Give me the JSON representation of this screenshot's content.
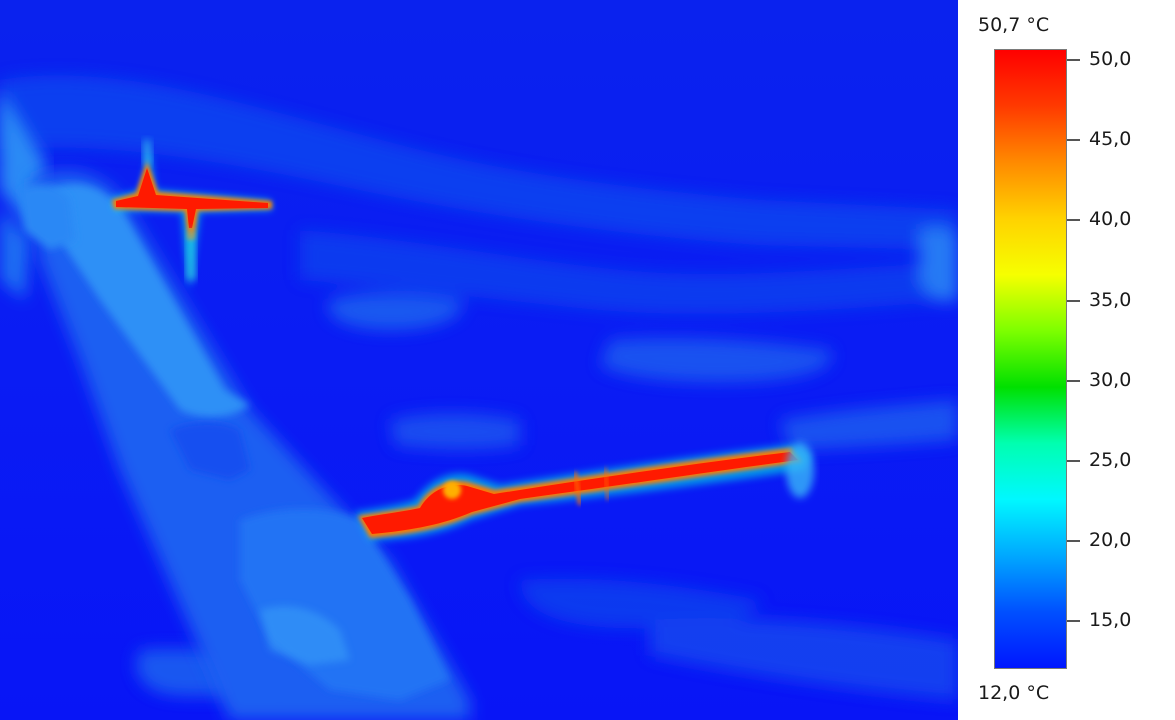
{
  "thermal_image": {
    "description_icon": "thermal-camera-image"
  },
  "scale": {
    "max_label": "50,7 °C",
    "min_label": "12,0 °C",
    "min_value": 12.0,
    "max_value": 50.7,
    "ticks": [
      {
        "value": 50.0,
        "label": "50,0"
      },
      {
        "value": 45.0,
        "label": "45,0"
      },
      {
        "value": 40.0,
        "label": "40,0"
      },
      {
        "value": 35.0,
        "label": "35,0"
      },
      {
        "value": 30.0,
        "label": "30,0"
      },
      {
        "value": 25.0,
        "label": "25,0"
      },
      {
        "value": 20.0,
        "label": "20,0"
      },
      {
        "value": 15.0,
        "label": "15,0"
      }
    ],
    "palette": [
      "#ff0000",
      "#ff3a00",
      "#ff8a00",
      "#ffd200",
      "#f6ff00",
      "#7dff00",
      "#00e000",
      "#00ffb0",
      "#00f8ff",
      "#00a8ff",
      "#0050ff",
      "#0016ff"
    ]
  }
}
